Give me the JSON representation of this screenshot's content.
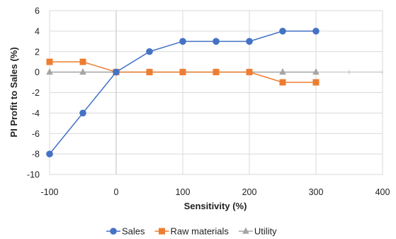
{
  "chart_data": {
    "type": "line",
    "title": "",
    "xlabel": "Sensitivity (%)",
    "ylabel": "PI Profit to Sales (%)",
    "xlim": [
      -100,
      400
    ],
    "ylim": [
      -10,
      6
    ],
    "xticks": [
      -100,
      0,
      100,
      200,
      300,
      400
    ],
    "yticks": [
      -10,
      -8,
      -6,
      -4,
      -2,
      0,
      2,
      4,
      6
    ],
    "grid": true,
    "legend_position": "bottom",
    "x": [
      -100,
      -50,
      0,
      50,
      100,
      150,
      200,
      250,
      300
    ],
    "series": [
      {
        "name": "Sales",
        "values": [
          -8,
          -4,
          0,
          2,
          3,
          3,
          3,
          4,
          4
        ],
        "color": "#4472C4",
        "marker": "circle"
      },
      {
        "name": "Raw materials",
        "values": [
          1,
          1,
          0,
          0,
          0,
          0,
          0,
          -1,
          -1
        ],
        "color": "#ED7D31",
        "marker": "square"
      },
      {
        "name": "Utility",
        "values": [
          0,
          0,
          0,
          0,
          0,
          0,
          0,
          0,
          0
        ],
        "color": "#A5A5A5",
        "marker": "triangle"
      }
    ]
  }
}
